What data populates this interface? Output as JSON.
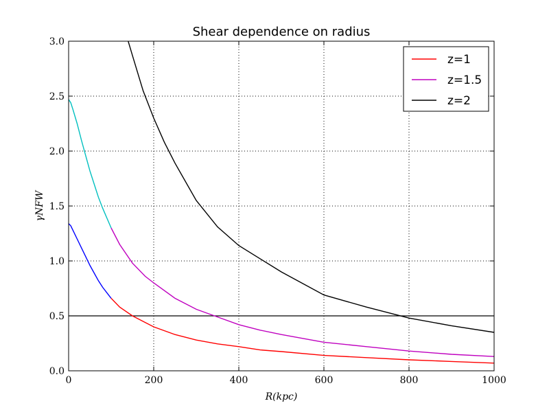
{
  "chart_data": {
    "type": "line",
    "title": "Shear dependence on radius",
    "xlabel": "R(kpc)",
    "ylabel": "γNFW",
    "xlim": [
      0,
      1000
    ],
    "ylim": [
      0.0,
      3.0
    ],
    "xticks": [
      "0",
      "200",
      "400",
      "600",
      "800",
      "1000"
    ],
    "yticks": [
      "0.0",
      "0.5",
      "1.0",
      "1.5",
      "2.0",
      "2.5",
      "3.0"
    ],
    "grid": true,
    "legend_position": "top-right",
    "reference_line": {
      "y": 0.5,
      "color": "#000000"
    },
    "series": [
      {
        "name": "z=1",
        "color": "#ff0000",
        "inner_color": "#0000ff",
        "split_x": 100,
        "x": [
          0,
          5,
          10,
          20,
          30,
          40,
          50,
          60,
          70,
          80,
          90,
          100,
          120,
          150,
          180,
          200,
          250,
          300,
          350,
          400,
          450,
          500,
          600,
          700,
          800,
          900,
          1000
        ],
        "y": [
          1.34,
          1.32,
          1.28,
          1.2,
          1.12,
          1.04,
          0.96,
          0.89,
          0.82,
          0.76,
          0.71,
          0.66,
          0.58,
          0.5,
          0.44,
          0.4,
          0.33,
          0.28,
          0.245,
          0.22,
          0.19,
          0.175,
          0.14,
          0.12,
          0.1,
          0.085,
          0.07
        ]
      },
      {
        "name": "z=1.5",
        "color": "#bf00bf",
        "inner_color": "#00bfbf",
        "split_x": 100,
        "x": [
          0,
          5,
          10,
          20,
          30,
          40,
          50,
          60,
          70,
          80,
          90,
          100,
          120,
          150,
          180,
          200,
          250,
          300,
          350,
          400,
          450,
          500,
          600,
          700,
          800,
          900,
          1000
        ],
        "y": [
          2.47,
          2.44,
          2.38,
          2.25,
          2.1,
          1.96,
          1.82,
          1.7,
          1.58,
          1.48,
          1.39,
          1.3,
          1.15,
          0.98,
          0.86,
          0.8,
          0.66,
          0.56,
          0.49,
          0.42,
          0.37,
          0.33,
          0.26,
          0.22,
          0.18,
          0.15,
          0.13
        ]
      },
      {
        "name": "z=2",
        "color": "#000000",
        "x": [
          140,
          150,
          175,
          200,
          225,
          250,
          300,
          350,
          400,
          450,
          500,
          600,
          700,
          800,
          900,
          1000
        ],
        "y": [
          3.0,
          2.87,
          2.55,
          2.3,
          2.08,
          1.89,
          1.55,
          1.31,
          1.14,
          1.02,
          0.9,
          0.69,
          0.58,
          0.48,
          0.41,
          0.35
        ]
      }
    ]
  }
}
